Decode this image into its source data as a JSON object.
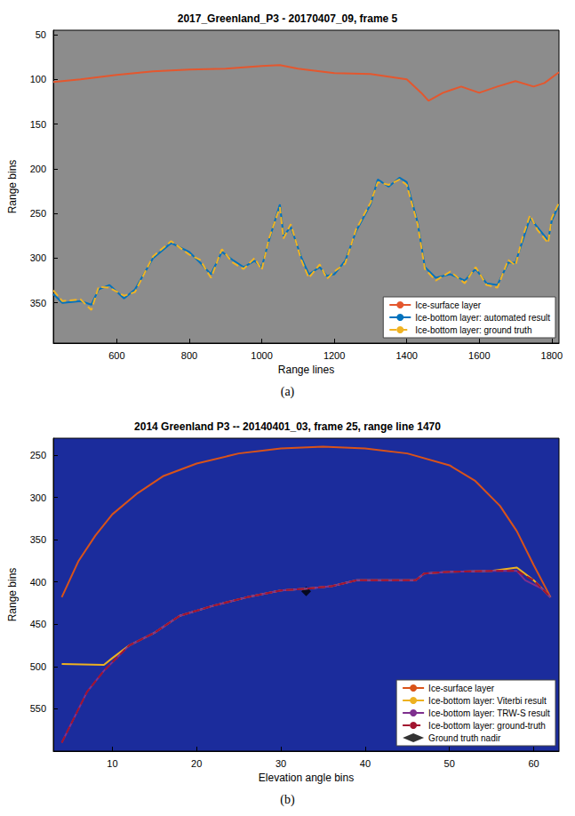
{
  "chart_data": [
    {
      "type": "line",
      "title": "2017_Greenland_P3 - 20170407_09, frame 5",
      "caption": "(a)",
      "x_label": "Range lines",
      "y_label": "Range bins",
      "xlim": [
        425,
        1820
      ],
      "xticks": [
        600,
        800,
        1000,
        1200,
        1400,
        1600,
        1800
      ],
      "ylim": [
        395,
        45
      ],
      "yticks": [
        50,
        100,
        150,
        200,
        250,
        300,
        350
      ],
      "grid": false,
      "legend": "bottom-right",
      "series": [
        {
          "name": "Ice-surface layer",
          "color": "#e4572e",
          "line_style": "solid",
          "x": [
            425,
            500,
            600,
            700,
            800,
            900,
            1000,
            1050,
            1100,
            1200,
            1300,
            1400,
            1440,
            1460,
            1500,
            1550,
            1600,
            1650,
            1700,
            1750,
            1780,
            1820
          ],
          "values": [
            103,
            100,
            95,
            91,
            89,
            88,
            85,
            84,
            88,
            93,
            94,
            100,
            115,
            124,
            115,
            108,
            115,
            108,
            102,
            108,
            104,
            92
          ]
        },
        {
          "name": "Ice-bottom layer: automated result",
          "color": "#0072bd",
          "line_style": "solid",
          "x": [
            425,
            450,
            500,
            530,
            550,
            580,
            620,
            650,
            700,
            750,
            800,
            830,
            860,
            890,
            920,
            950,
            980,
            1000,
            1020,
            1050,
            1060,
            1080,
            1110,
            1130,
            1160,
            1180,
            1200,
            1230,
            1260,
            1300,
            1320,
            1350,
            1380,
            1400,
            1430,
            1450,
            1480,
            1520,
            1560,
            1590,
            1620,
            1650,
            1680,
            1700,
            1720,
            1740,
            1760,
            1790,
            1800,
            1820
          ],
          "values": [
            340,
            350,
            348,
            352,
            335,
            330,
            345,
            335,
            300,
            283,
            293,
            305,
            318,
            293,
            302,
            310,
            303,
            310,
            280,
            240,
            275,
            265,
            300,
            318,
            310,
            320,
            318,
            303,
            270,
            240,
            212,
            220,
            210,
            215,
            260,
            310,
            322,
            318,
            325,
            312,
            328,
            330,
            305,
            305,
            280,
            255,
            265,
            280,
            258,
            240
          ]
        },
        {
          "name": "Ice-bottom layer: ground truth",
          "color": "#f0b323",
          "line_style": "dashed",
          "x": [
            425,
            450,
            500,
            530,
            550,
            580,
            620,
            650,
            700,
            750,
            800,
            830,
            860,
            890,
            920,
            950,
            980,
            1000,
            1020,
            1050,
            1060,
            1080,
            1110,
            1130,
            1160,
            1180,
            1200,
            1230,
            1260,
            1300,
            1320,
            1350,
            1380,
            1400,
            1430,
            1450,
            1480,
            1520,
            1560,
            1590,
            1620,
            1650,
            1680,
            1700,
            1720,
            1740,
            1760,
            1790,
            1800,
            1820
          ],
          "values": [
            336,
            348,
            346,
            358,
            332,
            333,
            342,
            338,
            298,
            281,
            296,
            302,
            322,
            290,
            305,
            312,
            300,
            313,
            278,
            243,
            278,
            262,
            303,
            322,
            307,
            323,
            315,
            306,
            268,
            238,
            215,
            218,
            212,
            218,
            262,
            312,
            325,
            315,
            328,
            310,
            330,
            333,
            302,
            308,
            276,
            252,
            268,
            283,
            255,
            238
          ]
        }
      ]
    },
    {
      "type": "line",
      "title": "2014 Greenland P3 -- 20140401_03, frame 25, range line 1470",
      "caption": "(b)",
      "x_label": "Elevation angle bins",
      "y_label": "Range bins",
      "xlim": [
        3,
        63
      ],
      "xticks": [
        10,
        20,
        30,
        40,
        50,
        60
      ],
      "ylim": [
        600,
        230
      ],
      "yticks": [
        250,
        300,
        350,
        400,
        450,
        500,
        550
      ],
      "grid": false,
      "legend": "bottom-right",
      "series": [
        {
          "name": "Ice-surface layer",
          "color": "#d95319",
          "line_style": "solid",
          "x": [
            4,
            6,
            8,
            10,
            13,
            16,
            20,
            25,
            30,
            35,
            40,
            45,
            50,
            53,
            56,
            58,
            60,
            62
          ],
          "values": [
            418,
            375,
            345,
            320,
            295,
            275,
            260,
            248,
            242,
            240,
            242,
            248,
            262,
            280,
            310,
            340,
            380,
            418
          ]
        },
        {
          "name": "Ice-bottom layer: Viterbi result",
          "color": "#edb120",
          "line_style": "solid",
          "x": [
            4,
            9,
            10,
            12,
            15,
            18,
            22,
            26,
            30,
            33,
            36,
            39,
            42,
            46,
            47,
            50,
            55,
            58,
            60,
            62
          ],
          "values": [
            497,
            498,
            490,
            475,
            460,
            440,
            428,
            418,
            410,
            408,
            405,
            398,
            398,
            398,
            390,
            388,
            387,
            383,
            398,
            418
          ]
        },
        {
          "name": "Ice-bottom layer: TRW-S result",
          "color": "#7e2f8e",
          "line_style": "solid",
          "x": [
            4,
            5,
            7,
            9,
            12,
            15,
            18,
            22,
            26,
            30,
            33,
            36,
            39,
            42,
            46,
            47,
            50,
            55,
            58,
            59,
            61,
            62
          ],
          "values": [
            590,
            570,
            530,
            505,
            475,
            460,
            440,
            428,
            418,
            410,
            408,
            405,
            398,
            398,
            398,
            390,
            388,
            387,
            387,
            398,
            408,
            418
          ]
        },
        {
          "name": "Ice-bottom layer: ground-truth",
          "color": "#a2142f",
          "line_style": "dashed",
          "x": [
            4,
            5,
            7,
            9,
            12,
            15,
            18,
            22,
            26,
            30,
            33,
            36,
            39,
            42,
            46,
            47,
            50,
            55,
            58,
            60,
            62
          ],
          "values": [
            590,
            570,
            530,
            505,
            475,
            460,
            440,
            428,
            418,
            410,
            408,
            405,
            398,
            398,
            398,
            390,
            388,
            387,
            387,
            398,
            418
          ]
        },
        {
          "name": "Ground truth nadir",
          "color": "#000000",
          "type": "scatter",
          "marker": "diamond",
          "x": [
            33
          ],
          "values": [
            411
          ]
        }
      ]
    }
  ]
}
